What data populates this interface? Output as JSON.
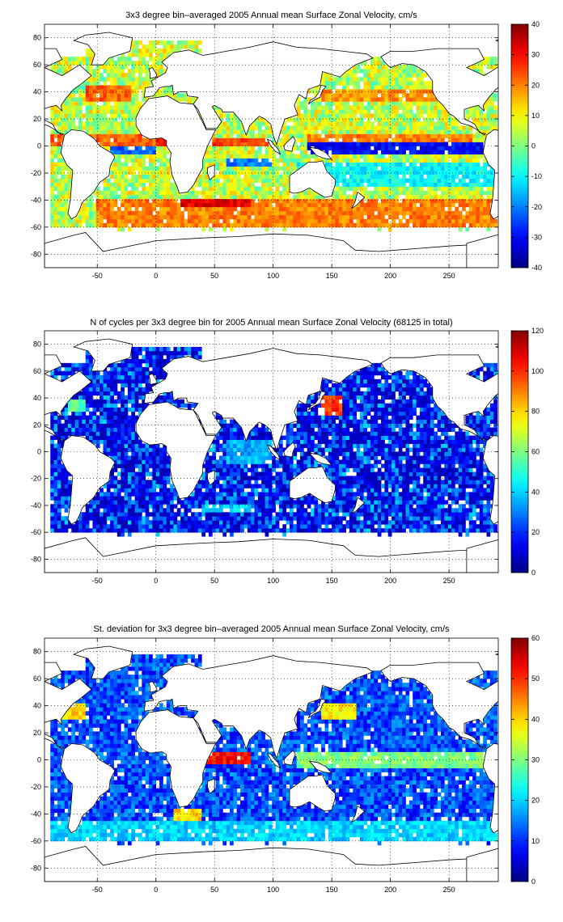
{
  "chart_data": [
    {
      "type": "heatmap",
      "title": "3x3 degree bin–averaged 2005 Annual mean Surface Zonal Velocity, cm/s",
      "xlim": [
        -95,
        292
      ],
      "ylim": [
        -90,
        90
      ],
      "xticks": [
        "-50",
        "0",
        "50",
        "100",
        "150",
        "200",
        "250"
      ],
      "yticks": [
        "80",
        "60",
        "40",
        "20",
        "0",
        "-20",
        "-40",
        "-60",
        "-80"
      ],
      "grid": true,
      "colormap": "jet",
      "clim": [
        -40,
        40
      ],
      "colorbar_ticks": [
        "40",
        "30",
        "20",
        "10",
        "0",
        "-10",
        "-20",
        "-30",
        "-40"
      ],
      "regions": [
        {
          "lon": [
            -90,
            0
          ],
          "lat": [
            0,
            9
          ],
          "value": 22
        },
        {
          "lon": [
            0,
            10
          ],
          "lat": [
            0,
            5
          ],
          "value": 30
        },
        {
          "lon": [
            -60,
            -20
          ],
          "lat": [
            33,
            45
          ],
          "value": 22
        },
        {
          "lon": [
            140,
            240
          ],
          "lat": [
            33,
            42
          ],
          "value": 18
        },
        {
          "lon": [
            130,
            270
          ],
          "lat": [
            3,
            9
          ],
          "value": 20
        },
        {
          "lon": [
            130,
            285
          ],
          "lat": [
            -6,
            3
          ],
          "value": -30
        },
        {
          "lon": [
            -40,
            0
          ],
          "lat": [
            -6,
            0
          ],
          "value": -22
        },
        {
          "lon": [
            60,
            100
          ],
          "lat": [
            -15,
            -10
          ],
          "value": -20
        },
        {
          "lon": [
            40,
            100
          ],
          "lat": [
            0,
            6
          ],
          "value": 25
        },
        {
          "lon": [
            -50,
            290
          ],
          "lat": [
            -60,
            -40
          ],
          "value": 20
        },
        {
          "lon": [
            20,
            80
          ],
          "lat": [
            -45,
            -38
          ],
          "value": 32
        },
        {
          "lon": [
            120,
            290
          ],
          "lat": [
            -30,
            -12
          ],
          "value": -10
        }
      ]
    },
    {
      "type": "heatmap",
      "title": "N of cycles per 3x3 degree bin for 2005 Annual mean Surface Zonal Velocity (68125 in total)",
      "xlim": [
        -95,
        292
      ],
      "ylim": [
        -90,
        90
      ],
      "xticks": [
        "-50",
        "0",
        "50",
        "100",
        "150",
        "200",
        "250"
      ],
      "yticks": [
        "80",
        "60",
        "40",
        "20",
        "0",
        "-20",
        "-40",
        "-60",
        "-80"
      ],
      "grid": true,
      "colormap": "jet",
      "clim": [
        0,
        120
      ],
      "colorbar_ticks": [
        "120",
        "100",
        "80",
        "60",
        "40",
        "20",
        "0"
      ],
      "regions": [
        {
          "lon": [
            140,
            160
          ],
          "lat": [
            28,
            42
          ],
          "value": 100
        },
        {
          "lon": [
            -75,
            -60
          ],
          "lat": [
            30,
            40
          ],
          "value": 55
        },
        {
          "lon": [
            40,
            80
          ],
          "lat": [
            -45,
            -40
          ],
          "value": 40
        },
        {
          "lon": [
            60,
            100
          ],
          "lat": [
            -10,
            10
          ],
          "value": 35
        }
      ]
    },
    {
      "type": "heatmap",
      "title": "St. deviation for 3x3 degree bin–averaged 2005 Annual mean Surface Zonal Velocity, cm/s",
      "xlim": [
        -95,
        292
      ],
      "ylim": [
        -90,
        90
      ],
      "xticks": [
        "-50",
        "0",
        "50",
        "100",
        "150",
        "200",
        "250"
      ],
      "yticks": [
        "80",
        "60",
        "40",
        "20",
        "0",
        "-20",
        "-40",
        "-60",
        "-80"
      ],
      "grid": true,
      "colormap": "jet",
      "clim": [
        0,
        60
      ],
      "colorbar_ticks": [
        "60",
        "50",
        "40",
        "30",
        "20",
        "10",
        "0"
      ],
      "regions": [
        {
          "lon": [
            40,
            80
          ],
          "lat": [
            -2,
            6
          ],
          "value": 52
        },
        {
          "lon": [
            -80,
            -60
          ],
          "lat": [
            30,
            42
          ],
          "value": 40
        },
        {
          "lon": [
            140,
            170
          ],
          "lat": [
            30,
            42
          ],
          "value": 38
        },
        {
          "lon": [
            120,
            285
          ],
          "lat": [
            -6,
            6
          ],
          "value": 30
        },
        {
          "lon": [
            15,
            40
          ],
          "lat": [
            -45,
            -35
          ],
          "value": 40
        },
        {
          "lon": [
            -95,
            290
          ],
          "lat": [
            -60,
            -45
          ],
          "value": 20
        }
      ]
    }
  ]
}
